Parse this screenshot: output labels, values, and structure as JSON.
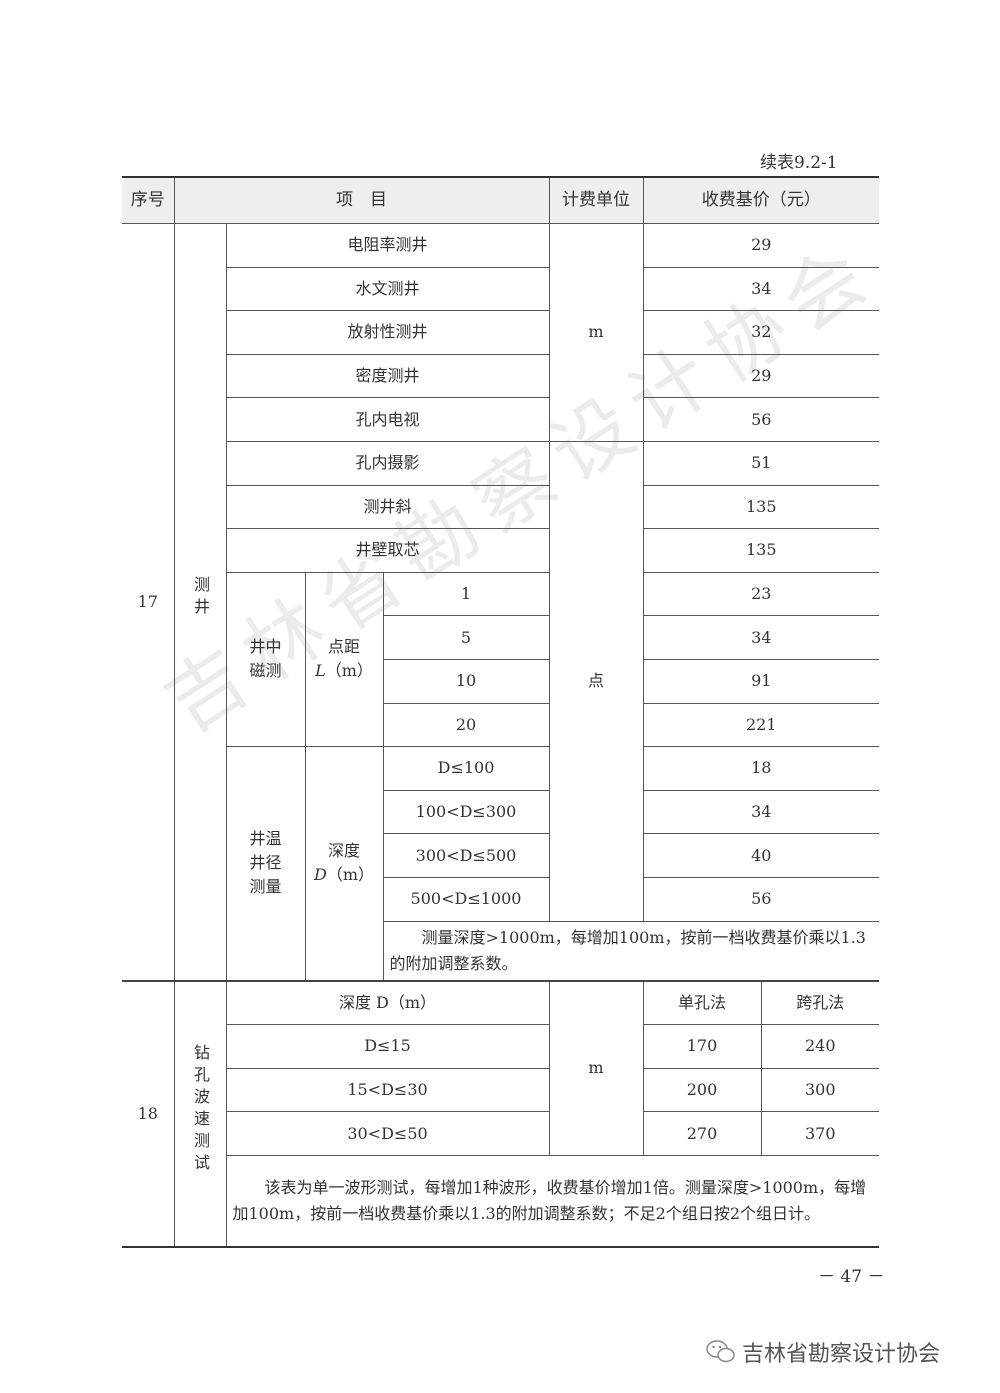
{
  "caption": "续表9.2-1",
  "header": {
    "seq": "序号",
    "item": "项　目",
    "unit": "计费单位",
    "price": "收费基价（元）"
  },
  "r17": {
    "seq": "17",
    "name": "测井",
    "rows": [
      {
        "item": "电阻率测井",
        "price": "29"
      },
      {
        "item": "水文测井",
        "price": "34"
      },
      {
        "item": "放射性测井",
        "price": "32"
      },
      {
        "item": "密度测井",
        "price": "29"
      },
      {
        "item": "孔内电视",
        "price": "56"
      },
      {
        "item": "孔内摄影",
        "price": "51"
      },
      {
        "item": "测井斜",
        "price": "135"
      },
      {
        "item": "井壁取芯",
        "price": "135"
      }
    ],
    "unit_m": "m",
    "unit_point": "点",
    "mag": {
      "name": "井中磁测",
      "param": "点距",
      "param_var": "L",
      "param_unit": "（m）",
      "rows": [
        {
          "v": "1",
          "price": "23"
        },
        {
          "v": "5",
          "price": "34"
        },
        {
          "v": "10",
          "price": "91"
        },
        {
          "v": "20",
          "price": "221"
        }
      ]
    },
    "temp": {
      "name": "井温井径测量",
      "param": "深度",
      "param_var": "D",
      "param_unit": "（m）",
      "rows": [
        {
          "v": "D≤100",
          "price": "18"
        },
        {
          "v": "100<D≤300",
          "price": "34"
        },
        {
          "v": "300<D≤500",
          "price": "40"
        },
        {
          "v": "500<D≤1000",
          "price": "56"
        }
      ]
    },
    "note": "测量深度>1000m，每增加100m，按前一档收费基价乘以1.3的附加调整系数。"
  },
  "r18": {
    "seq": "18",
    "name": "钻孔波速测试",
    "col_depth": "深度 D（m）",
    "col_single": "单孔法",
    "col_cross": "跨孔法",
    "unit": "m",
    "rows": [
      {
        "depth": "D≤15",
        "single": "170",
        "cross": "240"
      },
      {
        "depth": "15<D≤30",
        "single": "200",
        "cross": "300"
      },
      {
        "depth": "30<D≤50",
        "single": "270",
        "cross": "370"
      }
    ],
    "note": "该表为单一波形测试，每增加1种波形，收费基价增加1倍。测量深度>1000m，每增加100m，按前一档收费基价乘以1.3的附加调整系数；不足2个组日按2个组日计。"
  },
  "page_number": "－ 47 －",
  "watermark": "吉林省勘察设计协会",
  "footer": {
    "icon": "wechat-icon",
    "text": "吉林省勘察设计协会"
  }
}
